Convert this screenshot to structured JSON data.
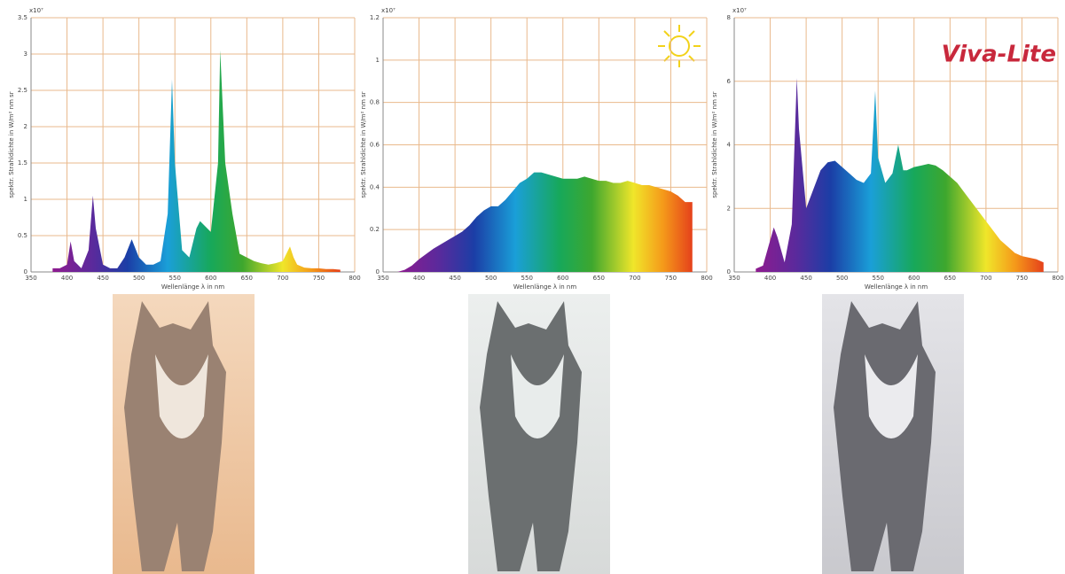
{
  "chart_data": [
    {
      "type": "area",
      "y_exponent": "x10⁷",
      "ylabel": "spektr. Strahldichte in W/m² nm sr",
      "xlabel": "Wellenlänge λ in nm",
      "xlim": [
        350,
        800
      ],
      "xticks": [
        350,
        400,
        450,
        500,
        550,
        600,
        650,
        700,
        750,
        800
      ],
      "ylim": [
        0,
        3.5
      ],
      "yticks": [
        0,
        0.5,
        1,
        1.5,
        2,
        2.5,
        3,
        3.5
      ],
      "grid": true,
      "x": [
        380,
        390,
        400,
        405,
        410,
        420,
        430,
        436,
        440,
        450,
        460,
        470,
        480,
        490,
        500,
        510,
        520,
        530,
        540,
        546,
        550,
        560,
        570,
        580,
        585,
        600,
        610,
        613,
        620,
        630,
        640,
        650,
        660,
        670,
        680,
        690,
        700,
        705,
        710,
        715,
        720,
        730,
        740,
        750,
        760,
        770,
        780
      ],
      "values": [
        0.05,
        0.05,
        0.1,
        0.42,
        0.15,
        0.05,
        0.3,
        1.05,
        0.6,
        0.1,
        0.05,
        0.05,
        0.2,
        0.45,
        0.2,
        0.1,
        0.1,
        0.15,
        0.8,
        2.65,
        1.5,
        0.3,
        0.2,
        0.6,
        0.7,
        0.55,
        1.5,
        3.05,
        1.5,
        0.8,
        0.25,
        0.2,
        0.15,
        0.12,
        0.1,
        0.12,
        0.15,
        0.25,
        0.35,
        0.2,
        0.1,
        0.06,
        0.05,
        0.05,
        0.04,
        0.04,
        0.03
      ]
    },
    {
      "type": "area",
      "y_exponent": "x10⁷",
      "ylabel": "spektr. Strahldichte in W/m² nm sr",
      "xlabel": "Wellenlänge λ in nm",
      "xlim": [
        350,
        800
      ],
      "xticks": [
        350,
        400,
        450,
        500,
        550,
        600,
        650,
        700,
        750,
        800
      ],
      "ylim": [
        0,
        1.2
      ],
      "yticks": [
        0,
        0.2,
        0.4,
        0.6,
        0.8,
        1,
        1.2
      ],
      "grid": true,
      "x": [
        370,
        380,
        390,
        400,
        420,
        440,
        450,
        460,
        470,
        480,
        490,
        500,
        510,
        520,
        530,
        540,
        550,
        560,
        570,
        580,
        590,
        600,
        610,
        620,
        630,
        640,
        650,
        660,
        670,
        680,
        690,
        700,
        710,
        720,
        730,
        740,
        750,
        760,
        770,
        780
      ],
      "values": [
        0,
        0.01,
        0.03,
        0.06,
        0.11,
        0.15,
        0.17,
        0.19,
        0.22,
        0.26,
        0.29,
        0.31,
        0.31,
        0.34,
        0.38,
        0.42,
        0.44,
        0.47,
        0.47,
        0.46,
        0.45,
        0.44,
        0.44,
        0.44,
        0.45,
        0.44,
        0.43,
        0.43,
        0.42,
        0.42,
        0.43,
        0.42,
        0.41,
        0.41,
        0.4,
        0.39,
        0.38,
        0.36,
        0.33,
        0.33
      ]
    },
    {
      "type": "area",
      "y_exponent": "x10⁷",
      "ylabel": "spektr. Strahldichte in W/m² nm sr",
      "xlabel": "Wellenlänge λ in nm",
      "logo": "Viva-Lite",
      "xlim": [
        350,
        800
      ],
      "xticks": [
        350,
        400,
        450,
        500,
        550,
        600,
        650,
        700,
        750,
        800
      ],
      "ylim": [
        0,
        8
      ],
      "yticks": [
        0,
        2,
        4,
        6,
        8
      ],
      "grid": true,
      "x": [
        380,
        390,
        400,
        405,
        410,
        420,
        430,
        437,
        440,
        450,
        460,
        470,
        480,
        490,
        500,
        510,
        520,
        530,
        540,
        546,
        550,
        560,
        570,
        578,
        585,
        590,
        600,
        610,
        620,
        630,
        640,
        650,
        660,
        670,
        680,
        690,
        700,
        710,
        720,
        730,
        740,
        750,
        760,
        770,
        780
      ],
      "values": [
        0.1,
        0.2,
        1.0,
        1.4,
        1.1,
        0.3,
        1.5,
        6.1,
        4.5,
        2.0,
        2.6,
        3.2,
        3.45,
        3.5,
        3.3,
        3.1,
        2.9,
        2.8,
        3.1,
        5.7,
        3.6,
        2.8,
        3.1,
        4.0,
        3.2,
        3.2,
        3.3,
        3.35,
        3.4,
        3.35,
        3.2,
        3.0,
        2.8,
        2.5,
        2.2,
        1.9,
        1.6,
        1.3,
        1.0,
        0.8,
        0.6,
        0.5,
        0.45,
        0.4,
        0.3
      ]
    }
  ]
}
